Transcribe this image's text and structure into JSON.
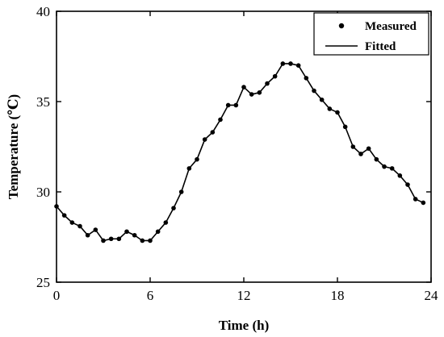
{
  "chart_data": {
    "type": "line",
    "xlabel": "Time (h)",
    "ylabel": "Temperature (℃)",
    "xlim": [
      0,
      24
    ],
    "ylim": [
      25,
      40
    ],
    "xticks": [
      0,
      6,
      12,
      18,
      24
    ],
    "yticks": [
      25,
      30,
      35,
      40
    ],
    "grid": false,
    "legend_position": "top-right",
    "series": [
      {
        "name": "Measured",
        "style": "markers",
        "color": "#000000",
        "x": [
          0,
          0.5,
          1,
          1.5,
          2,
          2.5,
          3,
          3.5,
          4,
          4.5,
          5,
          5.5,
          6,
          6.5,
          7,
          7.5,
          8,
          8.5,
          9,
          9.5,
          10,
          10.5,
          11,
          11.5,
          12,
          12.5,
          13,
          13.5,
          14,
          14.5,
          15,
          15.5,
          16,
          16.5,
          17,
          17.5,
          18,
          18.5,
          19,
          19.5,
          20,
          20.5,
          21,
          21.5,
          22,
          22.5,
          23,
          23.5
        ],
        "y": [
          29.2,
          28.7,
          28.3,
          28.1,
          27.6,
          27.9,
          27.3,
          27.4,
          27.4,
          27.8,
          27.6,
          27.3,
          27.3,
          27.8,
          28.3,
          29.1,
          30.0,
          31.3,
          31.8,
          32.9,
          33.3,
          34.0,
          34.8,
          34.8,
          35.8,
          35.4,
          35.5,
          36.0,
          36.4,
          37.1,
          37.1,
          37.0,
          36.3,
          35.6,
          35.1,
          34.6,
          34.4,
          33.6,
          32.5,
          32.1,
          32.4,
          31.8,
          31.4,
          31.3,
          30.9,
          30.4,
          29.6,
          29.4
        ]
      },
      {
        "name": "Fitted",
        "style": "line",
        "color": "#000000",
        "x": [
          0,
          0.5,
          1,
          1.5,
          2,
          2.5,
          3,
          3.5,
          4,
          4.5,
          5,
          5.5,
          6,
          6.5,
          7,
          7.5,
          8,
          8.5,
          9,
          9.5,
          10,
          10.5,
          11,
          11.5,
          12,
          12.5,
          13,
          13.5,
          14,
          14.5,
          15,
          15.5,
          16,
          16.5,
          17,
          17.5,
          18,
          18.5,
          19,
          19.5,
          20,
          20.5,
          21,
          21.5,
          22,
          22.5,
          23,
          23.5
        ],
        "y": [
          29.2,
          28.7,
          28.3,
          28.1,
          27.6,
          27.9,
          27.3,
          27.4,
          27.4,
          27.8,
          27.6,
          27.3,
          27.3,
          27.8,
          28.3,
          29.1,
          30.0,
          31.3,
          31.8,
          32.9,
          33.3,
          34.0,
          34.8,
          34.8,
          35.8,
          35.4,
          35.5,
          36.0,
          36.4,
          37.1,
          37.1,
          37.0,
          36.3,
          35.6,
          35.1,
          34.6,
          34.4,
          33.6,
          32.5,
          32.1,
          32.4,
          31.8,
          31.4,
          31.3,
          30.9,
          30.4,
          29.6,
          29.4
        ]
      }
    ]
  }
}
